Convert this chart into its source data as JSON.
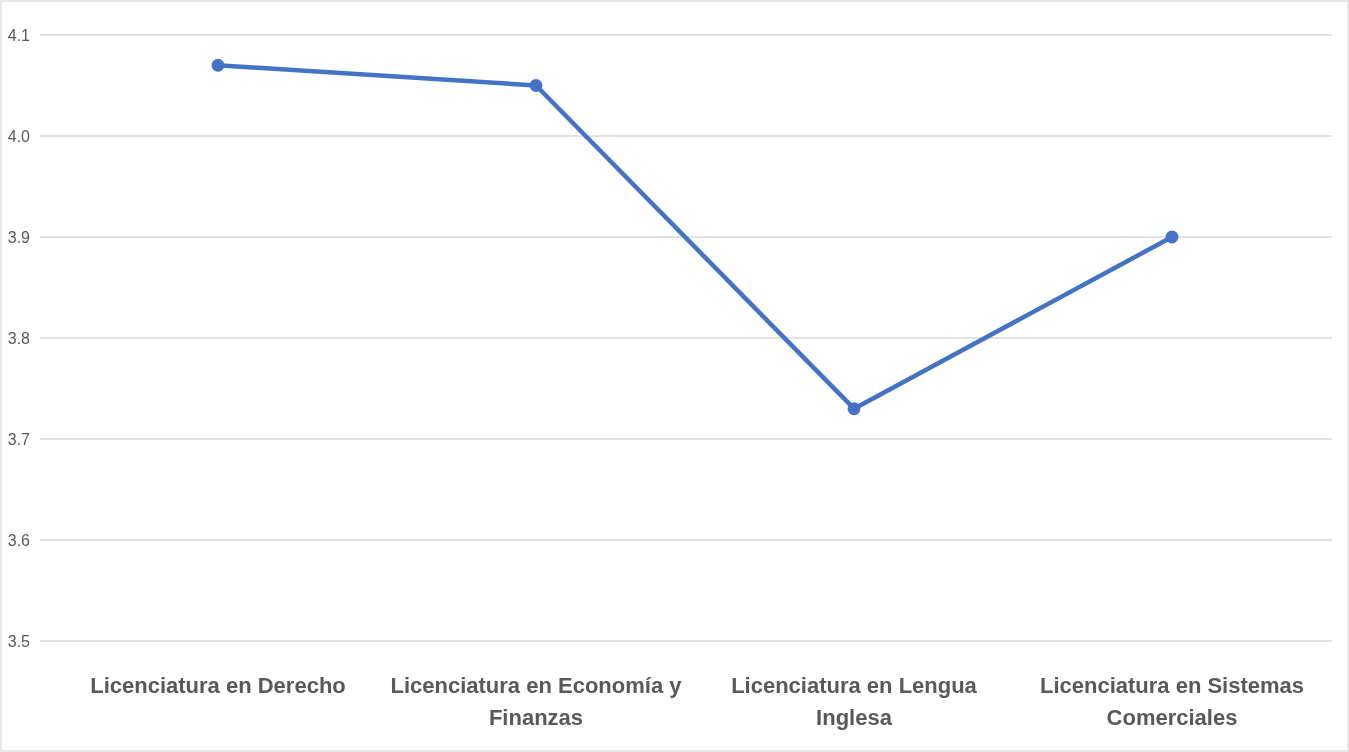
{
  "chart_data": {
    "type": "line",
    "categories": [
      "Licenciatura en Derecho",
      "Licenciatura en Economía y Finanzas",
      "Licenciatura en Lengua Inglesa",
      "Licenciatura en Sistemas Comerciales"
    ],
    "series": [
      {
        "color": "#4472c4",
        "values": [
          4.07,
          4.05,
          3.73,
          3.9
        ]
      }
    ],
    "ylim": [
      3.5,
      4.1
    ],
    "yticks": [
      {
        "value": 3.5,
        "label": "3.5"
      },
      {
        "value": 3.6,
        "label": "3.6"
      },
      {
        "value": 3.7,
        "label": "3.7"
      },
      {
        "value": 3.8,
        "label": "3.8"
      },
      {
        "value": 3.9,
        "label": "3.9"
      },
      {
        "value": 4.0,
        "label": "4.0"
      },
      {
        "value": 4.1,
        "label": "4.1"
      }
    ],
    "grid": "y",
    "marker": "circle",
    "line_style": "solid"
  }
}
